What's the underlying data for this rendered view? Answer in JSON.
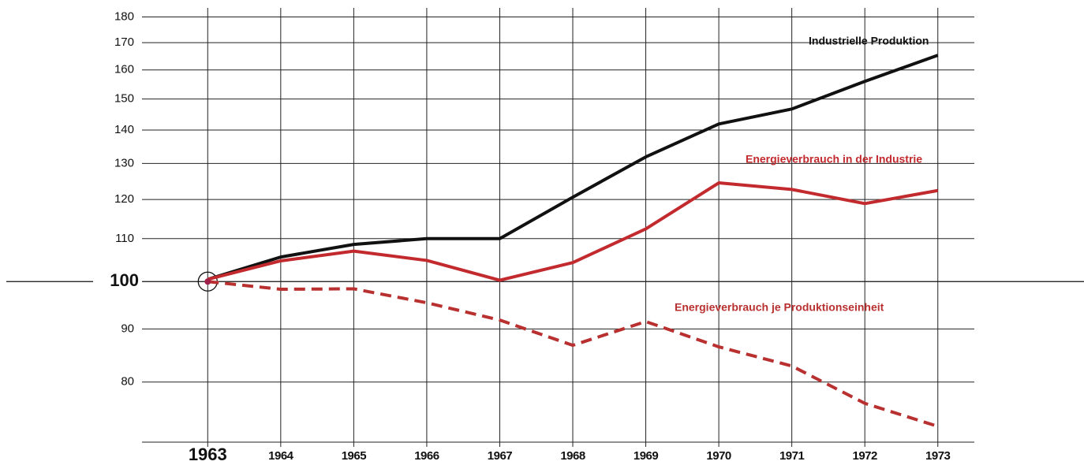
{
  "chart_data": {
    "type": "line",
    "x": [
      1963,
      1964,
      1965,
      1966,
      1967,
      1968,
      1969,
      1970,
      1971,
      1972,
      1973
    ],
    "series": [
      {
        "name": "Industrielle Produktion",
        "color": "#111111",
        "dashed": false,
        "values": [
          100.5,
          105.6,
          108.6,
          110,
          110,
          120.6,
          131.9,
          141.9,
          146.7,
          156,
          165.3
        ]
      },
      {
        "name": "Energieverbrauch in der Industrie",
        "color": "#c22a2e",
        "dashed": false,
        "values": [
          100.5,
          104.7,
          107,
          104.8,
          100.3,
          104.3,
          112.4,
          124.5,
          122.7,
          118.9,
          122.4
        ]
      },
      {
        "name": "Energieverbrauch je Produktionseinheit",
        "color": "#b8302f",
        "dashed": true,
        "values": [
          100,
          98.3,
          98.4,
          95.4,
          91.8,
          86.8,
          91.5,
          86.5,
          82.9,
          76.3,
          72.5
        ]
      }
    ],
    "xlim": [
      1962.1,
      1973.5
    ],
    "xticks": [
      1963,
      1964,
      1965,
      1966,
      1967,
      1968,
      1969,
      1970,
      1971,
      1972,
      1973
    ],
    "ylim": [
      70,
      183
    ],
    "yticks": [
      80,
      90,
      100,
      110,
      120,
      130,
      140,
      150,
      160,
      170,
      180
    ],
    "ylog": true,
    "reference_line": 100,
    "grid": true
  }
}
